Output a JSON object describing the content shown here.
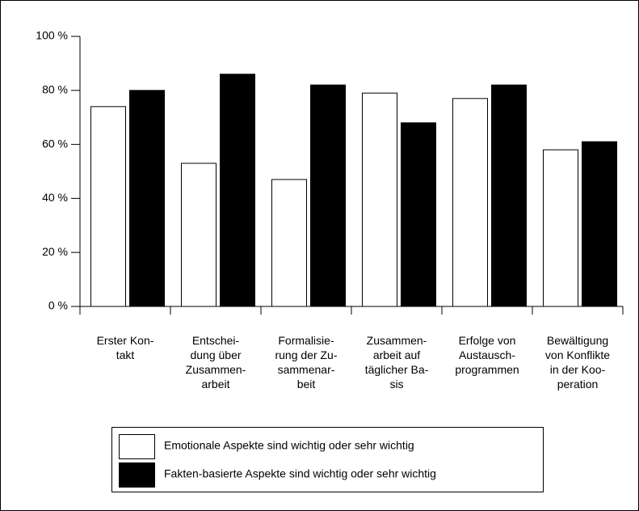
{
  "chart_data": {
    "type": "bar",
    "categories": [
      "Erster Kon-\ntakt",
      "Entschei-\ndung über\nZusammen-\narbeit",
      "Formalisie-\nrung der Zu-\nsammenar-\nbeit",
      "Zusammen-\narbeit auf\ntäglicher Ba-\nsis",
      "Erfolge von\nAustausch-\nprogrammen",
      "Bewältigung\nvon Konflikte\nin der Koo-\nperation"
    ],
    "series": [
      {
        "name": "Emotionale Aspekte sind wichtig oder sehr wichtig",
        "color": "#ffffff",
        "values": [
          74,
          53,
          47,
          79,
          77,
          58
        ]
      },
      {
        "name": "Fakten-basierte Aspekte sind wichtig oder sehr wichtig",
        "color": "#000000",
        "values": [
          80,
          86,
          82,
          68,
          82,
          61
        ]
      }
    ],
    "ylim": [
      0,
      100
    ],
    "yticks": [
      {
        "value": 0,
        "label": "0 %"
      },
      {
        "value": 20,
        "label": "20 %"
      },
      {
        "value": 40,
        "label": "40 %"
      },
      {
        "value": 60,
        "label": "60 %"
      },
      {
        "value": 80,
        "label": "80 %"
      },
      {
        "value": 100,
        "label": "100 %"
      }
    ],
    "legend": "bottom"
  }
}
